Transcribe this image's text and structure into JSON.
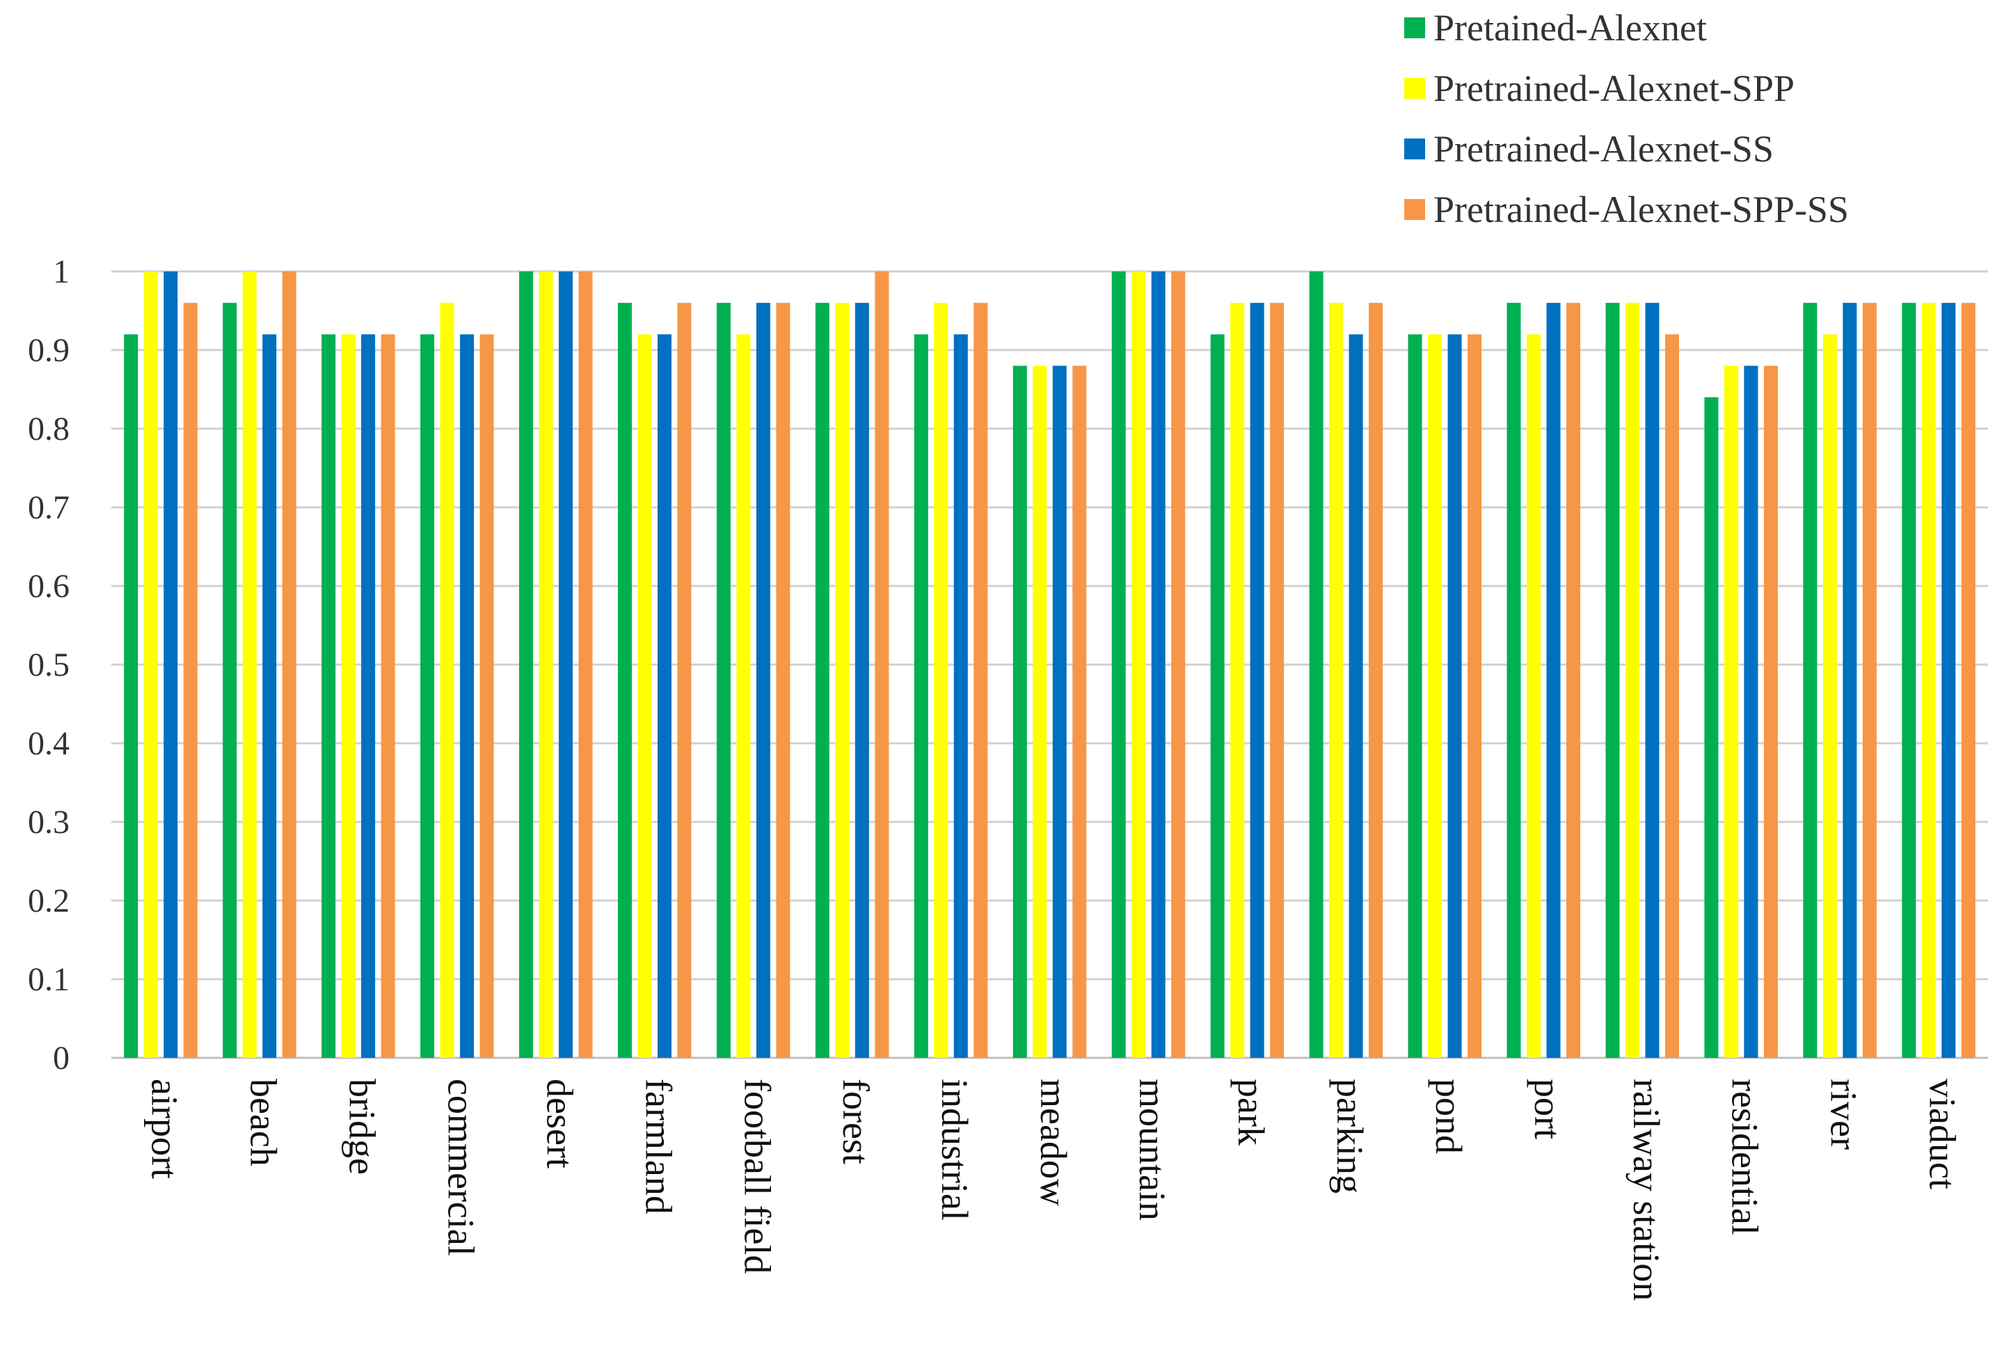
{
  "chart_data": {
    "type": "bar",
    "title": "",
    "xlabel": "",
    "ylabel": "",
    "ylim": [
      0,
      1
    ],
    "yticks": [
      "0",
      "0.1",
      "0.2",
      "0.3",
      "0.4",
      "0.5",
      "0.6",
      "0.7",
      "0.8",
      "0.9",
      "1"
    ],
    "grid": true,
    "legend_position": "top-right",
    "categories": [
      "airport",
      "beach",
      "bridge",
      "commercial",
      "desert",
      "farmland",
      "football field",
      "forest",
      "industrial",
      "meadow",
      "mountain",
      "park",
      "parking",
      "pond",
      "port",
      "railway station",
      "residential",
      "river",
      "viaduct"
    ],
    "series": [
      {
        "name": "Pretained-Alexnet",
        "color": "#00B050",
        "values": [
          0.92,
          0.96,
          0.92,
          0.92,
          1.0,
          0.96,
          0.96,
          0.96,
          0.92,
          0.88,
          1.0,
          0.92,
          1.0,
          0.92,
          0.96,
          0.96,
          0.84,
          0.96,
          0.96
        ]
      },
      {
        "name": "Pretrained-Alexnet-SPP",
        "color": "#FFFF00",
        "values": [
          1.0,
          1.0,
          0.92,
          0.96,
          1.0,
          0.92,
          0.92,
          0.96,
          0.96,
          0.88,
          1.0,
          0.96,
          0.96,
          0.92,
          0.92,
          0.96,
          0.88,
          0.92,
          0.96
        ]
      },
      {
        "name": "Pretrained-Alexnet-SS",
        "color": "#0070C0",
        "values": [
          1.0,
          0.92,
          0.92,
          0.92,
          1.0,
          0.92,
          0.96,
          0.96,
          0.92,
          0.88,
          1.0,
          0.96,
          0.92,
          0.92,
          0.96,
          0.96,
          0.88,
          0.96,
          0.96
        ]
      },
      {
        "name": "Pretrained-Alexnet-SPP-SS",
        "color": "#F79646",
        "values": [
          0.96,
          1.0,
          0.92,
          0.92,
          1.0,
          0.96,
          0.96,
          1.0,
          0.96,
          0.88,
          1.0,
          0.96,
          0.96,
          0.92,
          0.96,
          0.92,
          0.88,
          0.96,
          0.96
        ]
      }
    ]
  }
}
